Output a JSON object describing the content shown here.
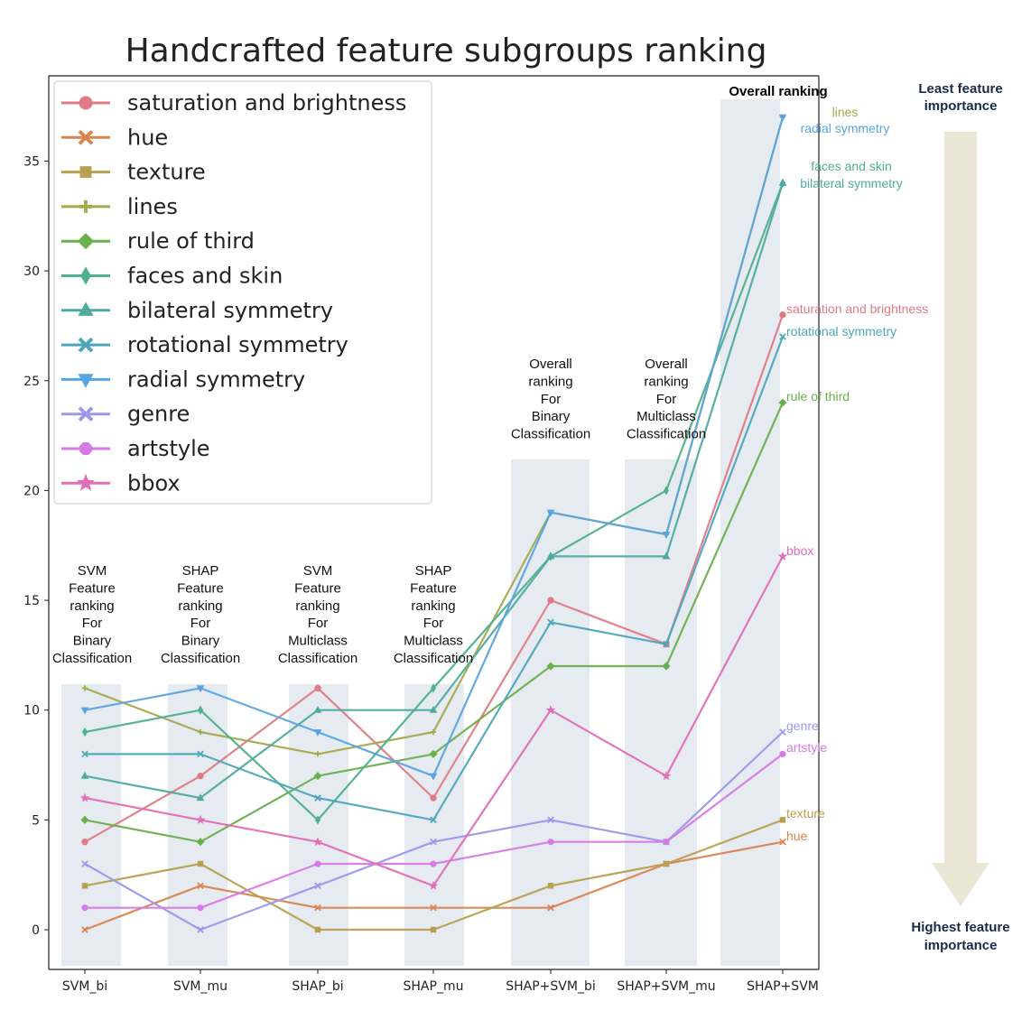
{
  "chart_data": {
    "type": "line",
    "title": "Handcrafted feature subgroups ranking",
    "xlabel": "",
    "ylabel": "",
    "categories": [
      "SVM_bi",
      "SVM_mu",
      "SHAP_bi",
      "SHAP_mu",
      "SHAP+SVM_bi",
      "SHAP+SVM_mu",
      "SHAP+SVM"
    ],
    "ylim": [
      -1.8,
      38.5
    ],
    "yticks": [
      0,
      5,
      10,
      15,
      20,
      25,
      30,
      35
    ],
    "grid": false,
    "legend_position": "top-left",
    "series": [
      {
        "name": "saturation and brightness",
        "color": "#e07b86",
        "marker": "circle",
        "values": [
          4,
          7,
          11,
          6,
          15,
          13,
          28
        ]
      },
      {
        "name": "hue",
        "color": "#d9844f",
        "marker": "x",
        "values": [
          0,
          2,
          1,
          1,
          1,
          3,
          4
        ]
      },
      {
        "name": "texture",
        "color": "#b8a050",
        "marker": "square",
        "values": [
          2,
          3,
          0,
          0,
          2,
          3,
          5
        ]
      },
      {
        "name": "lines",
        "color": "#a6a94d",
        "marker": "plus",
        "values": [
          11,
          9,
          8,
          9,
          19,
          18,
          37
        ]
      },
      {
        "name": "rule of third",
        "color": "#6ab04c",
        "marker": "diamond",
        "values": [
          5,
          4,
          7,
          8,
          12,
          12,
          24
        ]
      },
      {
        "name": "faces and skin",
        "color": "#4fb08c",
        "marker": "thin-diamond",
        "values": [
          9,
          10,
          5,
          11,
          17,
          20,
          34
        ]
      },
      {
        "name": "bilateral symmetry",
        "color": "#4fab9e",
        "marker": "triangle-up",
        "values": [
          7,
          6,
          10,
          10,
          17,
          17,
          34
        ]
      },
      {
        "name": "rotational symmetry",
        "color": "#4ea6ba",
        "marker": "x",
        "values": [
          8,
          8,
          6,
          5,
          14,
          13,
          27
        ]
      },
      {
        "name": "radial symmetry",
        "color": "#5aa4e0",
        "marker": "triangle-down",
        "values": [
          10,
          11,
          9,
          7,
          19,
          18,
          37
        ]
      },
      {
        "name": "genre",
        "color": "#9b98ea",
        "marker": "x",
        "values": [
          3,
          0,
          2,
          4,
          5,
          4,
          9
        ]
      },
      {
        "name": "artstyle",
        "color": "#d67ae6",
        "marker": "octagon",
        "values": [
          1,
          1,
          3,
          3,
          4,
          4,
          8
        ]
      },
      {
        "name": "bbox",
        "color": "#e06fb5",
        "marker": "star",
        "values": [
          6,
          5,
          4,
          2,
          10,
          7,
          17
        ]
      }
    ],
    "column_annotations": [
      [
        "SVM",
        "Feature",
        "ranking",
        "For",
        "Binary",
        "Classification"
      ],
      [
        "SHAP",
        "Feature",
        "ranking",
        "For",
        "Binary",
        "Classification"
      ],
      [
        "SVM",
        "Feature",
        "ranking",
        "For",
        "Multiclass",
        "Classification"
      ],
      [
        "SHAP",
        "Feature",
        "ranking",
        "For",
        "Multiclass",
        "Classification"
      ],
      [
        "Overall",
        "ranking",
        "For",
        "Binary",
        "Classification"
      ],
      [
        "Overall",
        "ranking",
        "For",
        "Multiclass",
        "Classification"
      ]
    ],
    "overall_annotation": "Overall ranking",
    "end_labels": [
      {
        "text": "lines",
        "series": "lines"
      },
      {
        "text": "radial symmetry",
        "series": "radial symmetry"
      },
      {
        "text": "faces and skin",
        "series": "faces and skin"
      },
      {
        "text": "bilateral symmetry",
        "series": "bilateral symmetry"
      },
      {
        "text": "saturation and brightness",
        "series": "saturation and brightness"
      },
      {
        "text": "rotational symmetry",
        "series": "rotational symmetry"
      },
      {
        "text": "rule of third",
        "series": "rule of third"
      },
      {
        "text": "bbox",
        "series": "bbox"
      },
      {
        "text": "genre",
        "series": "genre"
      },
      {
        "text": "artstyle",
        "series": "artstyle"
      },
      {
        "text": "texture",
        "series": "texture"
      },
      {
        "text": "hue",
        "series": "hue"
      }
    ],
    "importance_arrow": {
      "top_label": [
        "Least feature",
        "importance"
      ],
      "bottom_label": [
        "Highest feature",
        "importance"
      ],
      "color": "#ebe6d6"
    },
    "band_color": "#e6ebf2"
  }
}
